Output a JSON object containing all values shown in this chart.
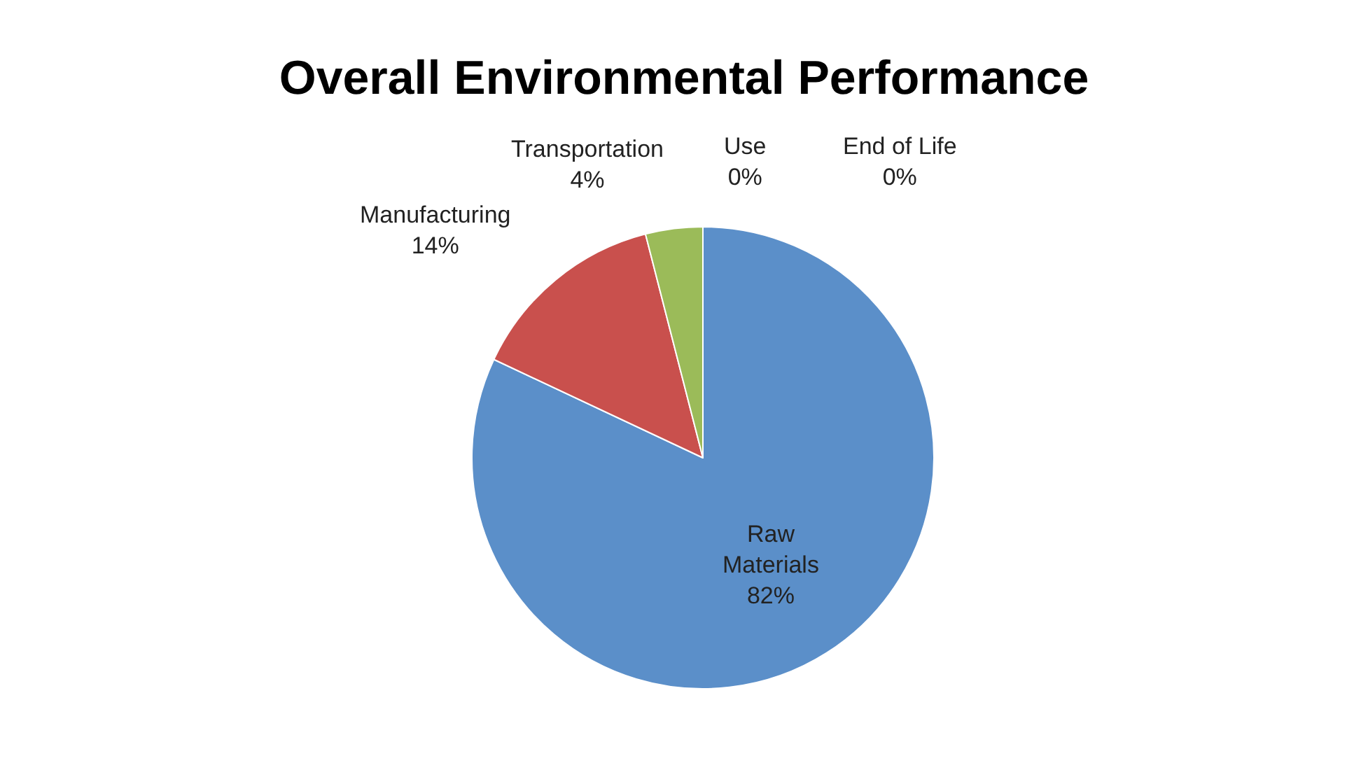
{
  "chart_data": {
    "type": "pie",
    "title": "Overall Environmental Performance",
    "categories": [
      "Raw Materials",
      "Manufacturing",
      "Transportation",
      "Use",
      "End of Life"
    ],
    "values": [
      82,
      14,
      4,
      0,
      0
    ],
    "value_labels": [
      "82%",
      "14%",
      "4%",
      "0%",
      "0%"
    ],
    "colors": [
      "#5b8fc9",
      "#c9504d",
      "#9bbb59",
      "#8064a2",
      "#4bacc6"
    ],
    "legend": false
  }
}
